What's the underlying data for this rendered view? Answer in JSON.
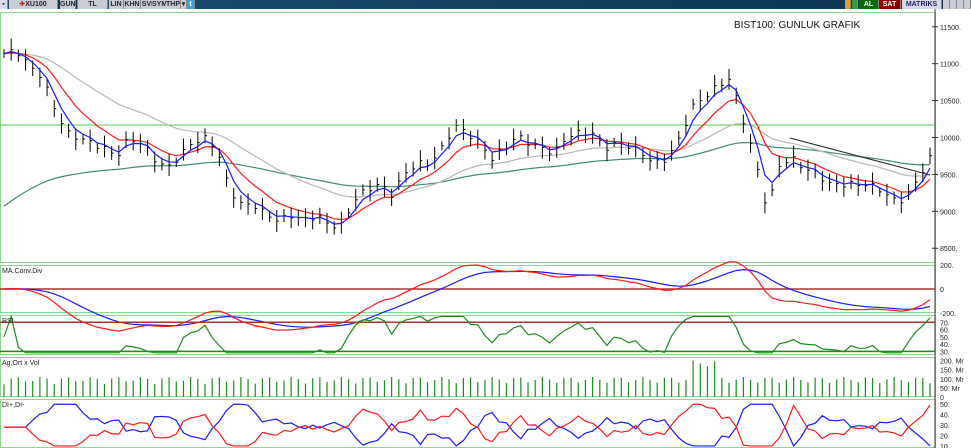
{
  "toolbar": {
    "symbol": "XU100",
    "period": "GUN",
    "currency": "TL",
    "buttons": [
      "LIN",
      "KHN",
      "SVD",
      "SYM",
      "THP"
    ],
    "buy": "AL",
    "sell": "SAT",
    "matrix": "MATRIKS"
  },
  "chart_title": "BIST100: GUNLUK GRAFIK",
  "panels": {
    "macd": "MA.Conv.Div",
    "rsi": "RSI",
    "volume": "Ag.Ort x Vol",
    "dmi": "DI+,DI-"
  },
  "axes": {
    "price": [
      "11500.",
      "11000.",
      "10500.",
      "10000.",
      "9500.",
      "9000.",
      "8500."
    ],
    "macd": [
      "200.",
      "0",
      "-200."
    ],
    "rsi": [
      "70.",
      "60.",
      "50.",
      "40.",
      "30."
    ],
    "volume": [
      "200. Mr",
      "150. Mr",
      "100. Mr",
      "50. Mr",
      "0"
    ],
    "dmi": [
      "50.",
      "40.",
      "30.",
      "20.",
      "10."
    ]
  },
  "chart_data": {
    "type": "line",
    "price_range": [
      8300,
      11700
    ],
    "resistance_level": 10170,
    "closes": [
      11137,
      11179,
      10970,
      10830,
      10412,
      10063,
      9993,
      9924,
      9854,
      9742,
      9993,
      9924,
      9714,
      9575,
      9742,
      9924,
      9993,
      9854,
      9296,
      9087,
      9087,
      8947,
      8877,
      8947,
      8877,
      8947,
      8808,
      8808,
      9156,
      9296,
      9366,
      9226,
      9505,
      9645,
      9645,
      9854,
      10161,
      10063,
      9924,
      9714,
      9854,
      10021,
      9924,
      9854,
      9784,
      10021,
      10063,
      10063,
      9854,
      9924,
      9882,
      9784,
      9645,
      9714,
      9993,
      10412,
      10551,
      10691,
      10802,
      10272,
      9714,
      9017,
      9645,
      9714,
      9575,
      9505,
      9366,
      9366,
      9366,
      9366,
      9296,
      9156,
      9156,
      9435,
      9714
    ]
  },
  "colors": {
    "ma_fast": "#1a1aff",
    "ma_mid": "#ff1a1a",
    "ma_slow": "#b8b8b8",
    "ma_long": "#3c8a7a",
    "rsi": "#1f8a1f",
    "grid": "#8fd68f"
  }
}
